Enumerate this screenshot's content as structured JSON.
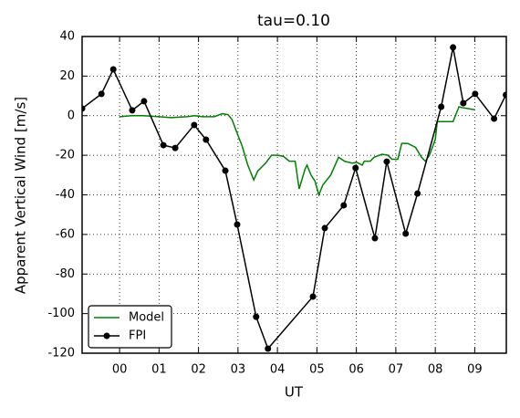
{
  "chart_data": {
    "type": "line",
    "title": "tau=0.10",
    "xlabel": "UT",
    "ylabel": "Apparent Vertical Wind [m/s]",
    "xlim": [
      -0.95,
      9.8
    ],
    "ylim": [
      -120,
      40
    ],
    "xticks": [
      {
        "value": 0,
        "label": "00"
      },
      {
        "value": 1,
        "label": "01"
      },
      {
        "value": 2,
        "label": "02"
      },
      {
        "value": 3,
        "label": "03"
      },
      {
        "value": 4,
        "label": "04"
      },
      {
        "value": 5,
        "label": "05"
      },
      {
        "value": 6,
        "label": "06"
      },
      {
        "value": 7,
        "label": "07"
      },
      {
        "value": 8,
        "label": "08"
      },
      {
        "value": 9,
        "label": "09"
      }
    ],
    "yticks": [
      -120,
      -100,
      -80,
      -60,
      -40,
      -20,
      0,
      20,
      40
    ],
    "grid": true,
    "legend": "lower left",
    "series": [
      {
        "name": "Model",
        "color": "#008000",
        "marker": false,
        "x": [
          0,
          0.3,
          0.6,
          1.0,
          1.3,
          1.7,
          1.9,
          2.1,
          2.4,
          2.6,
          2.75,
          2.85,
          3.0,
          3.1,
          3.25,
          3.4,
          3.5,
          3.7,
          3.85,
          4.0,
          4.15,
          4.3,
          4.45,
          4.55,
          4.7,
          4.75,
          4.85,
          4.95,
          5.05,
          5.15,
          5.35,
          5.55,
          5.7,
          5.9,
          6.0,
          6.15,
          6.2,
          6.35,
          6.45,
          6.65,
          6.8,
          6.9,
          7.05,
          7.15,
          7.3,
          7.5,
          7.65,
          7.75,
          7.85,
          8.0,
          8.05,
          8.2,
          8.45,
          8.6,
          8.7,
          9.0
        ],
        "values": [
          -0.5,
          0,
          0,
          -0.5,
          -1,
          -0.5,
          0,
          -0.5,
          -0.5,
          1,
          0.5,
          -2,
          -10,
          -15,
          -25,
          -32.5,
          -28,
          -24,
          -20,
          -20,
          -20.5,
          -23,
          -23,
          -37,
          -27,
          -25,
          -30,
          -33,
          -40,
          -35,
          -30,
          -21,
          -23,
          -24,
          -23.5,
          -25,
          -23,
          -23,
          -21,
          -19.5,
          -20,
          -22,
          -22,
          -14,
          -14,
          -16,
          -21,
          -23,
          -20,
          -12,
          -3,
          -3,
          -3,
          4.5,
          4,
          3
        ]
      },
      {
        "name": "FPI",
        "color": "#000000",
        "marker": true,
        "x": [
          -0.95,
          -0.46,
          -0.16,
          0.32,
          0.62,
          1.11,
          1.41,
          1.89,
          2.19,
          2.68,
          2.98,
          3.46,
          3.76,
          4.9,
          5.2,
          5.68,
          5.98,
          6.47,
          6.77,
          7.25,
          7.55,
          8.15,
          8.45,
          8.71,
          9.01,
          9.49,
          9.79
        ],
        "values": [
          3.6,
          11,
          23.4,
          2.7,
          7.3,
          -14.9,
          -16.3,
          -4.7,
          -12.1,
          -27.8,
          -55,
          -101.6,
          -117.7,
          -91.4,
          -56.8,
          -45.3,
          -26.4,
          -61.9,
          -23.2,
          -59.6,
          -39.3,
          4.5,
          34.5,
          6.3,
          11,
          -1.5,
          10.5
        ]
      }
    ]
  }
}
